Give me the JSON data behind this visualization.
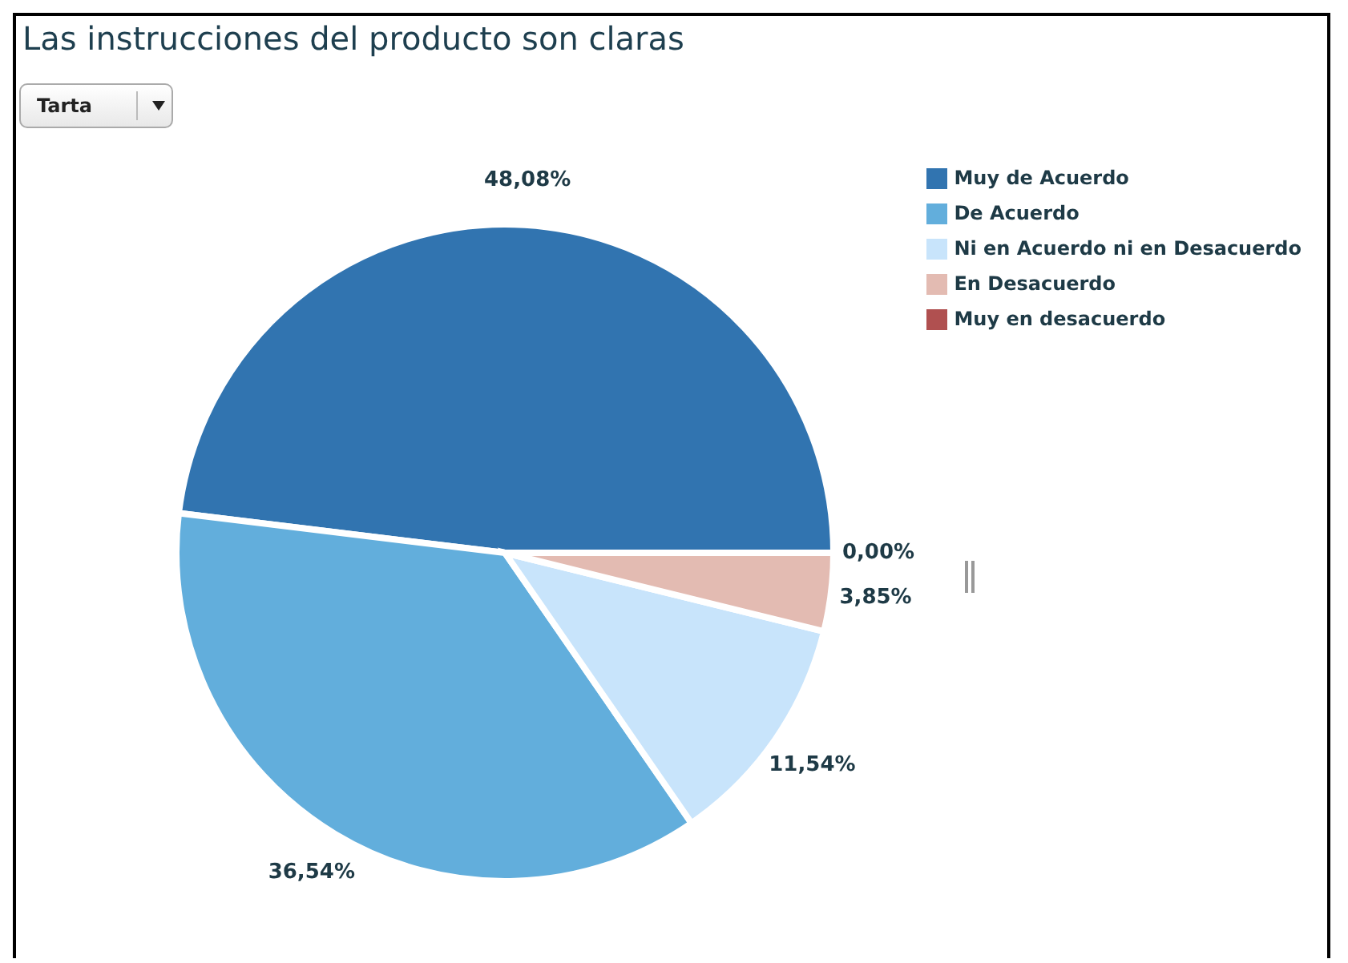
{
  "chart_data": {
    "type": "pie",
    "title": "Las instrucciones del producto son claras",
    "categories": [
      "Muy de Acuerdo",
      "De Acuerdo",
      "Ni en Acuerdo ni en Desacuerdo",
      "En Desacuerdo",
      "Muy en desacuerdo"
    ],
    "values": [
      48.08,
      36.54,
      11.54,
      3.85,
      0.0
    ],
    "colors": [
      "#3174b0",
      "#62aedc",
      "#c8e4fb",
      "#e3bbb2",
      "#b05050"
    ],
    "value_labels": [
      "48,08%",
      "36,54%",
      "11,54%",
      "3,85%",
      "0,00%"
    ],
    "legend": "top right",
    "annotations": [
      "Tarta"
    ]
  }
}
